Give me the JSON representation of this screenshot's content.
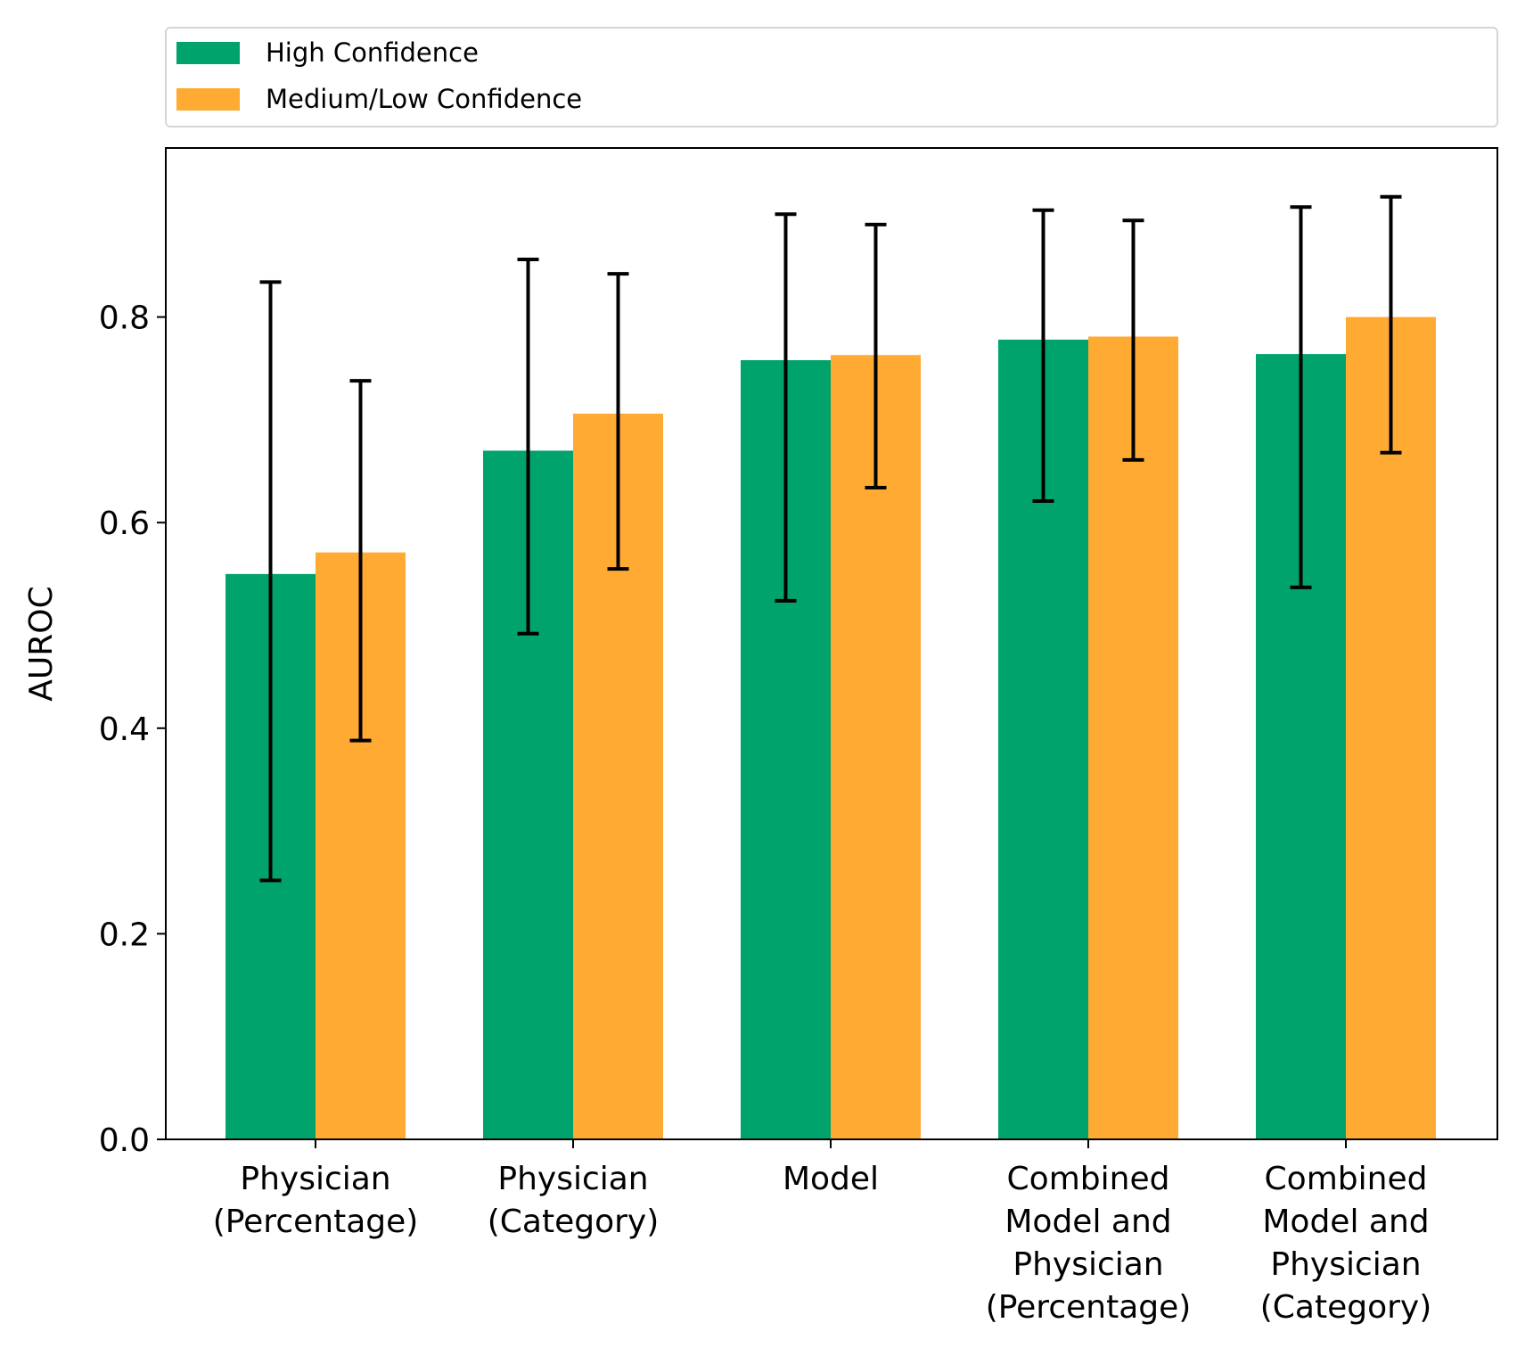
{
  "chart_data": {
    "type": "bar",
    "title": "",
    "xlabel": "",
    "ylabel": "AUROC",
    "ylim": [
      0,
      0.96
    ],
    "yticks": [
      0.0,
      0.2,
      0.4,
      0.6,
      0.8
    ],
    "ytick_labels": [
      "0.0",
      "0.2",
      "0.4",
      "0.6",
      "0.8"
    ],
    "grid": false,
    "legend_placement": "top, above plot",
    "categories": [
      [
        "Physician",
        "(Percentage)"
      ],
      [
        "Physician",
        "(Category)"
      ],
      [
        "Model"
      ],
      [
        "Combined",
        "Model and",
        "Physician",
        "(Percentage)"
      ],
      [
        "Combined",
        "Model and",
        "Physician",
        "(Category)"
      ]
    ],
    "series": [
      {
        "name": "High Confidence",
        "color": "#00a36c",
        "values": [
          0.55,
          0.67,
          0.758,
          0.778,
          0.764
        ],
        "error_lower": [
          0.252,
          0.492,
          0.524,
          0.621,
          0.537
        ],
        "error_upper": [
          0.834,
          0.856,
          0.9,
          0.904,
          0.907
        ]
      },
      {
        "name": "Medium/Low Confidence",
        "color": "#ffaa33",
        "values": [
          0.571,
          0.706,
          0.763,
          0.781,
          0.8
        ],
        "error_lower": [
          0.388,
          0.555,
          0.634,
          0.661,
          0.668
        ],
        "error_upper": [
          0.738,
          0.842,
          0.89,
          0.894,
          0.917
        ]
      }
    ]
  }
}
